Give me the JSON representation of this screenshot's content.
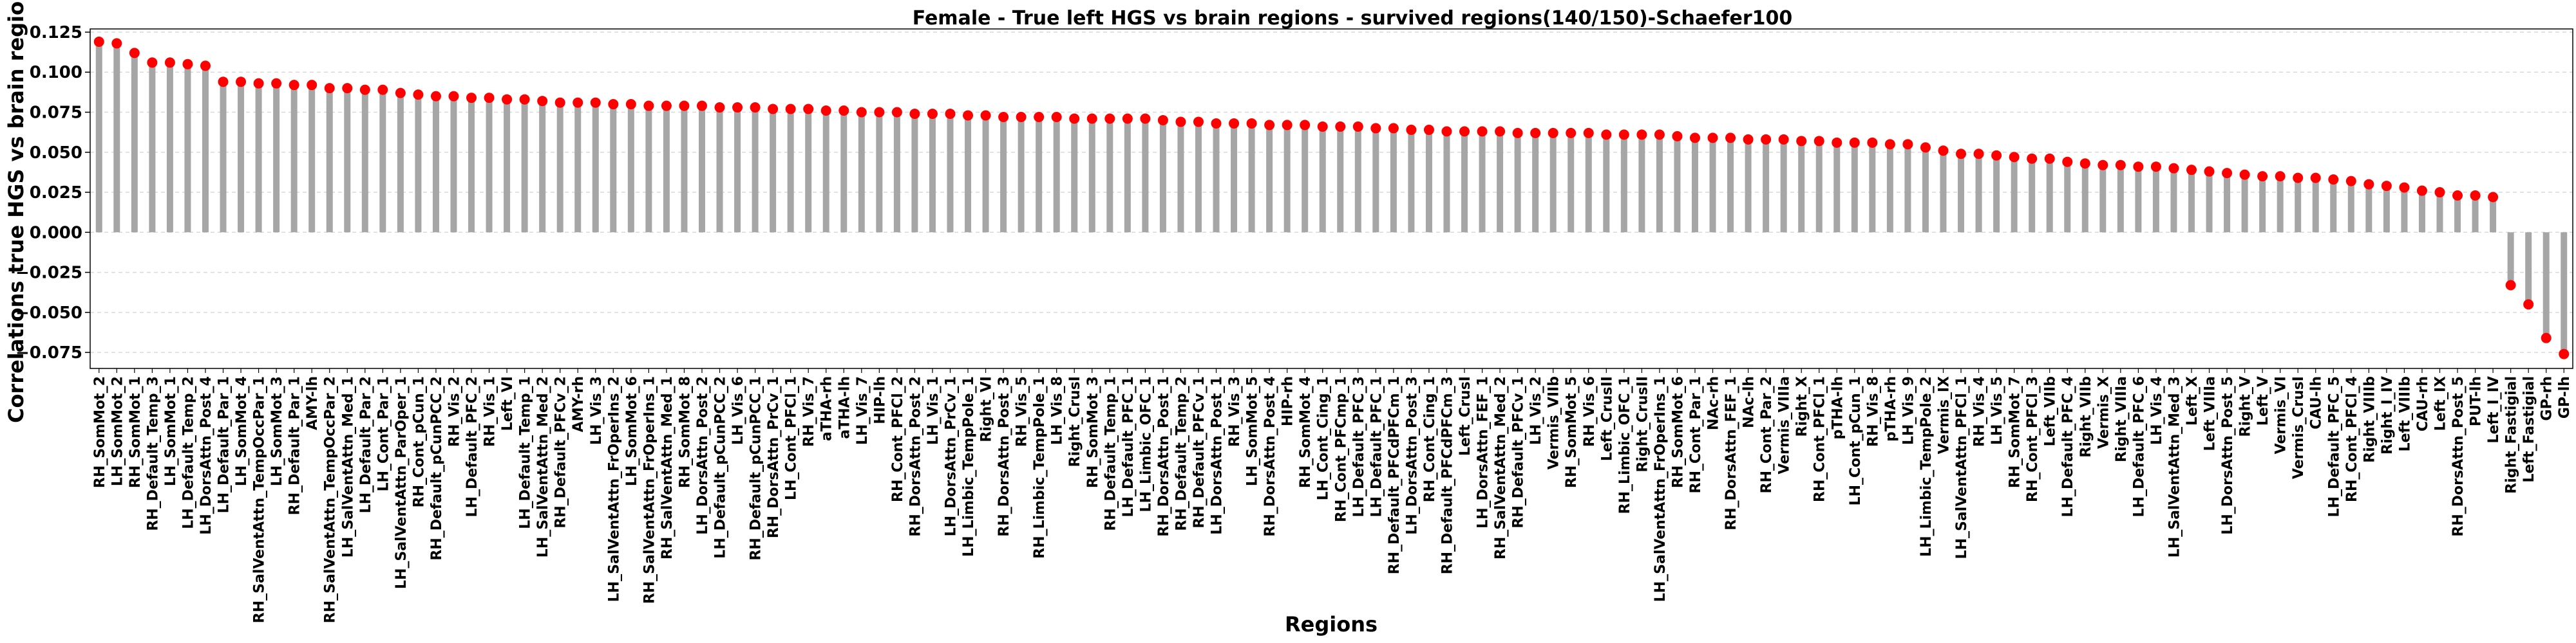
{
  "chart_data": {
    "type": "lollipop",
    "title": "Female - True left HGS vs brain regions - survived regions(140/150)-Schaefer100",
    "xlabel": "Regions",
    "ylabel": "Correlations true HGS vs brain regions",
    "ylim": [
      -0.085,
      0.127
    ],
    "yticks": [
      -0.075,
      -0.05,
      -0.025,
      0.0,
      0.025,
      0.05,
      0.075,
      0.1,
      0.125
    ],
    "ytick_labels": [
      "−0.075",
      "−0.050",
      "−0.025",
      "0.000",
      "0.025",
      "0.050",
      "0.075",
      "0.100",
      "0.125"
    ],
    "grid": "horizontal dashed",
    "colors": {
      "stem": "#a6a6a6",
      "marker": "#ff0000",
      "grid": "#d9d9d9"
    },
    "categories": [
      "RH_SomMot_2",
      "LH_SomMot_2",
      "RH_SomMot_1",
      "RH_Default_Temp_3",
      "LH_SomMot_1",
      "LH_Default_Temp_2",
      "LH_DorsAttn_Post_4",
      "LH_Default_Par_1",
      "LH_SomMot_4",
      "RH_SalVentAttn_TempOccPar_1",
      "LH_SomMot_3",
      "RH_Default_Par_1",
      "AMY-lh",
      "RH_SalVentAttn_TempOccPar_2",
      "LH_SalVentAttn_Med_1",
      "LH_Default_Par_2",
      "LH_Cont_Par_1",
      "LH_SalVentAttn_ParOper_1",
      "RH_Cont_pCun_1",
      "RH_Default_pCunPCC_2",
      "RH_Vis_2",
      "LH_Default_PFC_2",
      "RH_Vis_1",
      "Left_VI",
      "LH_Default_Temp_1",
      "LH_SalVentAttn_Med_2",
      "RH_Default_PFCv_2",
      "AMY-rh",
      "LH_Vis_3",
      "LH_SalVentAttn_FrOperIns_2",
      "LH_SomMot_6",
      "RH_SalVentAttn_FrOperIns_1",
      "RH_SalVentAttn_Med_1",
      "RH_SomMot_8",
      "LH_DorsAttn_Post_2",
      "LH_Default_pCunPCC_2",
      "LH_Vis_6",
      "RH_Default_pCunPCC_1",
      "RH_DorsAttn_PrCv_1",
      "LH_Cont_PFCl_1",
      "RH_Vis_7",
      "aTHA-rh",
      "aTHA-lh",
      "LH_Vis_7",
      "HIP-lh",
      "RH_Cont_PFCl_2",
      "RH_DorsAttn_Post_2",
      "LH_Vis_1",
      "LH_DorsAttn_PrCv_1",
      "LH_Limbic_TempPole_1",
      "Right_VI",
      "RH_DorsAttn_Post_3",
      "RH_Vis_5",
      "RH_Limbic_TempPole_1",
      "LH_Vis_8",
      "Right_CrusI",
      "RH_SomMot_3",
      "RH_Default_Temp_1",
      "LH_Default_PFC_1",
      "LH_Limbic_OFC_1",
      "RH_DorsAttn_Post_1",
      "RH_Default_Temp_2",
      "RH_Default_PFCv_1",
      "LH_DorsAttn_Post_1",
      "RH_Vis_3",
      "LH_SomMot_5",
      "RH_DorsAttn_Post_4",
      "HIP-rh",
      "RH_SomMot_4",
      "LH_Cont_Cing_1",
      "RH_Cont_PFCmp_1",
      "LH_Default_PFC_3",
      "LH_Default_PFC_1",
      "RH_Default_PFCdPFCm_1",
      "LH_DorsAttn_Post_3",
      "RH_Cont_Cing_1",
      "RH_Default_PFCdPFCm_3",
      "Left_CrusI",
      "LH_DorsAttn_FEF_1",
      "RH_SalVentAttn_Med_2",
      "RH_Default_PFCv_1",
      "LH_Vis_2",
      "Vermis_VIIb",
      "RH_SomMot_5",
      "RH_Vis_6",
      "Left_CrusII",
      "RH_Limbic_OFC_1",
      "Right_CrusII",
      "LH_SalVentAttn_FrOperIns_1",
      "RH_SomMot_6",
      "RH_Cont_Par_1",
      "NAc-rh",
      "RH_DorsAttn_FEF_1",
      "NAc-lh",
      "RH_Cont_Par_2",
      "Vermis_VIIIa",
      "Right_X",
      "RH_Cont_PFCl_1",
      "pTHA-lh",
      "LH_Cont_pCun_1",
      "RH_Vis_8",
      "pTHA-rh",
      "LH_Vis_9",
      "LH_Limbic_TempPole_2",
      "Vermis_IX",
      "LH_SalVentAttn_PFCl_1",
      "RH_Vis_4",
      "LH_Vis_5",
      "RH_SomMot_7",
      "RH_Cont_PFCl_3",
      "Left_VIIb",
      "LH_Default_PFC_4",
      "Right_VIIb",
      "Vermis_X",
      "Right_VIIIa",
      "LH_Default_PFC_6",
      "LH_Vis_4",
      "LH_SalVentAttn_Med_3",
      "Left_X",
      "Left_VIIIa",
      "LH_DorsAttn_Post_5",
      "Right_V",
      "Left_V",
      "Vermis_VI",
      "Vermis_CrusI",
      "CAU-lh",
      "LH_Default_PFC_5",
      "RH_Cont_PFCl_4",
      "Right_VIIIb",
      "Right_I_IV",
      "Left_VIIIb",
      "CAU-rh",
      "Left_IX",
      "RH_DorsAttn_Post_5",
      "PUT-lh",
      "Left_I_IV",
      "Right_Fastigial",
      "Left_Fastigial",
      "GP-rh",
      "GP-lh"
    ],
    "values": [
      0.119,
      0.118,
      0.112,
      0.106,
      0.106,
      0.105,
      0.104,
      0.094,
      0.094,
      0.093,
      0.093,
      0.092,
      0.092,
      0.09,
      0.09,
      0.089,
      0.089,
      0.087,
      0.086,
      0.085,
      0.085,
      0.084,
      0.084,
      0.083,
      0.083,
      0.082,
      0.081,
      0.081,
      0.081,
      0.08,
      0.08,
      0.079,
      0.079,
      0.079,
      0.079,
      0.078,
      0.078,
      0.078,
      0.077,
      0.077,
      0.077,
      0.076,
      0.076,
      0.075,
      0.075,
      0.075,
      0.074,
      0.074,
      0.074,
      0.073,
      0.073,
      0.072,
      0.072,
      0.072,
      0.072,
      0.071,
      0.071,
      0.071,
      0.071,
      0.071,
      0.07,
      0.069,
      0.069,
      0.068,
      0.068,
      0.068,
      0.067,
      0.067,
      0.067,
      0.066,
      0.066,
      0.066,
      0.065,
      0.065,
      0.064,
      0.064,
      0.063,
      0.063,
      0.063,
      0.063,
      0.062,
      0.062,
      0.062,
      0.062,
      0.062,
      0.061,
      0.061,
      0.061,
      0.061,
      0.06,
      0.059,
      0.059,
      0.059,
      0.058,
      0.058,
      0.058,
      0.057,
      0.057,
      0.056,
      0.056,
      0.056,
      0.055,
      0.055,
      0.053,
      0.051,
      0.049,
      0.049,
      0.048,
      0.047,
      0.046,
      0.046,
      0.044,
      0.043,
      0.042,
      0.042,
      0.041,
      0.041,
      0.04,
      0.039,
      0.038,
      0.037,
      0.036,
      0.035,
      0.035,
      0.034,
      0.034,
      0.033,
      0.032,
      0.03,
      0.029,
      0.028,
      0.026,
      0.025,
      0.023,
      0.023,
      0.022,
      -0.033,
      -0.045,
      -0.066,
      -0.076
    ]
  }
}
